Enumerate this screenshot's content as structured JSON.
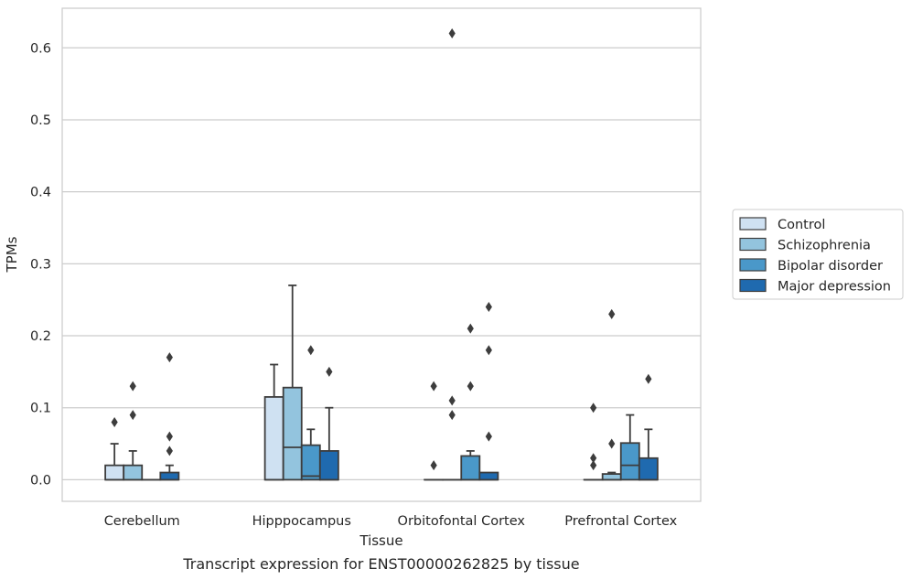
{
  "chart_data": {
    "type": "box",
    "caption": "Transcript expression for ENST00000262825 by tissue",
    "xlabel": "Tissue",
    "ylabel": "TPMs",
    "ylim": [
      -0.03,
      0.655
    ],
    "yticks": [
      0.0,
      0.1,
      0.2,
      0.3,
      0.4,
      0.5,
      0.6
    ],
    "ytick_labels": [
      "0.0",
      "0.1",
      "0.2",
      "0.3",
      "0.4",
      "0.5",
      "0.6"
    ],
    "grid": true,
    "legend_position": "right-center",
    "categories": [
      "Cerebellum",
      "Hipppocampus",
      "Orbitofontal Cortex",
      "Prefrontal Cortex"
    ],
    "series": [
      {
        "name": "Control",
        "color": "#cfe1f2",
        "boxes": [
          {
            "q1": 0.0,
            "median": 0.0,
            "q3": 0.02,
            "whisker_low": 0.0,
            "whisker_high": 0.05,
            "outliers": [
              0.08
            ]
          },
          {
            "q1": 0.0,
            "median": 0.0,
            "q3": 0.115,
            "whisker_low": 0.0,
            "whisker_high": 0.16,
            "outliers": []
          },
          {
            "q1": 0.0,
            "median": 0.0,
            "q3": 0.0,
            "whisker_low": 0.0,
            "whisker_high": 0.0,
            "outliers": [
              0.02,
              0.13
            ]
          },
          {
            "q1": 0.0,
            "median": 0.0,
            "q3": 0.0,
            "whisker_low": 0.0,
            "whisker_high": 0.0,
            "outliers": [
              0.02,
              0.03,
              0.1
            ]
          }
        ]
      },
      {
        "name": "Schizophrenia",
        "color": "#93c4de",
        "boxes": [
          {
            "q1": 0.0,
            "median": 0.0,
            "q3": 0.02,
            "whisker_low": 0.0,
            "whisker_high": 0.04,
            "outliers": [
              0.09,
              0.13
            ]
          },
          {
            "q1": 0.0,
            "median": 0.045,
            "q3": 0.128,
            "whisker_low": 0.0,
            "whisker_high": 0.27,
            "outliers": []
          },
          {
            "q1": 0.0,
            "median": 0.0,
            "q3": 0.0,
            "whisker_low": 0.0,
            "whisker_high": 0.0,
            "outliers": [
              0.09,
              0.11,
              0.62
            ]
          },
          {
            "q1": 0.0,
            "median": 0.0,
            "q3": 0.008,
            "whisker_low": 0.0,
            "whisker_high": 0.01,
            "outliers": [
              0.05,
              0.23
            ]
          }
        ]
      },
      {
        "name": "Bipolar disorder",
        "color": "#4a98c9",
        "boxes": [
          {
            "q1": 0.0,
            "median": 0.0,
            "q3": 0.0,
            "whisker_low": 0.0,
            "whisker_high": 0.0,
            "outliers": []
          },
          {
            "q1": 0.0,
            "median": 0.005,
            "q3": 0.048,
            "whisker_low": 0.0,
            "whisker_high": 0.07,
            "outliers": [
              0.18
            ]
          },
          {
            "q1": 0.0,
            "median": 0.0,
            "q3": 0.033,
            "whisker_low": 0.0,
            "whisker_high": 0.04,
            "outliers": [
              0.13,
              0.21
            ]
          },
          {
            "q1": 0.0,
            "median": 0.02,
            "q3": 0.051,
            "whisker_low": 0.0,
            "whisker_high": 0.09,
            "outliers": []
          }
        ]
      },
      {
        "name": "Major depression",
        "color": "#1f6aaf",
        "boxes": [
          {
            "q1": 0.0,
            "median": 0.0,
            "q3": 0.01,
            "whisker_low": 0.0,
            "whisker_high": 0.02,
            "outliers": [
              0.04,
              0.06,
              0.17
            ]
          },
          {
            "q1": 0.0,
            "median": 0.0,
            "q3": 0.04,
            "whisker_low": 0.0,
            "whisker_high": 0.1,
            "outliers": [
              0.15
            ]
          },
          {
            "q1": 0.0,
            "median": 0.0,
            "q3": 0.01,
            "whisker_low": 0.0,
            "whisker_high": 0.01,
            "outliers": [
              0.06,
              0.18,
              0.24
            ]
          },
          {
            "q1": 0.0,
            "median": 0.0,
            "q3": 0.03,
            "whisker_low": 0.0,
            "whisker_high": 0.07,
            "outliers": [
              0.14
            ]
          }
        ]
      }
    ]
  }
}
